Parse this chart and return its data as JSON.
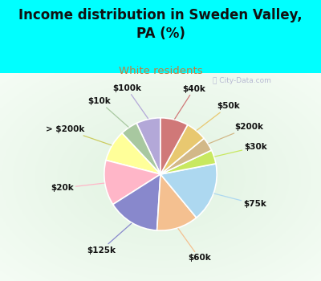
{
  "title": "Income distribution in Sweden Valley,\nPA (%)",
  "subtitle": "White residents",
  "title_color": "#111111",
  "subtitle_color": "#c47c3c",
  "background_outer": "#00ffff",
  "labels": [
    "$100k",
    "$10k",
    "> $200k",
    "$20k",
    "$125k",
    "$60k",
    "$75k",
    "$30k",
    "$200k",
    "$50k",
    "$40k"
  ],
  "sizes": [
    7,
    5,
    9,
    13,
    15,
    12,
    17,
    4,
    4,
    6,
    8
  ],
  "colors": [
    "#b3a8d8",
    "#a8c8a0",
    "#ffff99",
    "#ffb6c8",
    "#8888cc",
    "#f4c090",
    "#add8f0",
    "#c8e860",
    "#d2b888",
    "#e8c870",
    "#d07878"
  ],
  "startangle": 90,
  "wedge_edgecolor": "#ffffff",
  "wedge_linewidth": 1.2,
  "label_colors": [
    "#b3a8d8",
    "#a8c8a0",
    "#cccc60",
    "#ffb6c8",
    "#8888cc",
    "#f4c090",
    "#add8f0",
    "#c8e860",
    "#d2b888",
    "#e8c870",
    "#d07878"
  ]
}
